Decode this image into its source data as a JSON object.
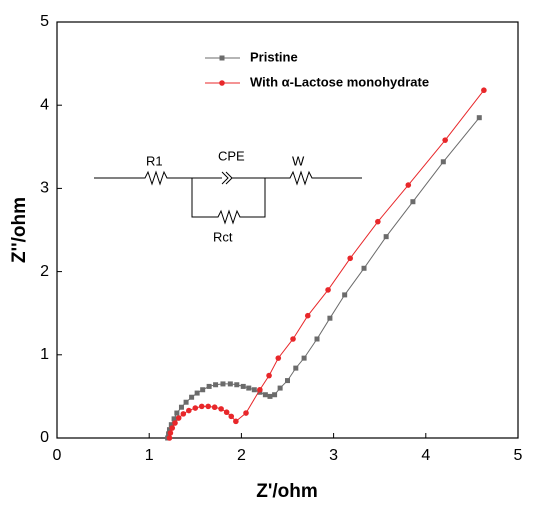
{
  "chart_data": {
    "type": "scatter",
    "xlabel": "Z'/ohm",
    "ylabel": "Z''/ohm",
    "xlim": [
      0,
      5
    ],
    "ylim": [
      0,
      5
    ],
    "xticks": [
      0,
      1,
      2,
      3,
      4,
      5
    ],
    "yticks": [
      0,
      1,
      2,
      3,
      4,
      5
    ],
    "legend": "top",
    "annotations": [
      "R1",
      "CPE",
      "W",
      "Rct"
    ],
    "series": [
      {
        "name": "Pristine",
        "color": "#6b6b6b",
        "marker": "square",
        "x": [
          1.2,
          1.21,
          1.22,
          1.24,
          1.27,
          1.3,
          1.35,
          1.4,
          1.46,
          1.52,
          1.58,
          1.65,
          1.72,
          1.8,
          1.88,
          1.95,
          2.02,
          2.08,
          2.14,
          2.2,
          2.26,
          2.31,
          2.36,
          2.42,
          2.5,
          2.59,
          2.68,
          2.82,
          2.96,
          3.12,
          3.33,
          3.57,
          3.86,
          4.19,
          4.58
        ],
        "values": [
          0.0,
          0.05,
          0.1,
          0.16,
          0.23,
          0.3,
          0.37,
          0.43,
          0.49,
          0.54,
          0.58,
          0.62,
          0.64,
          0.65,
          0.65,
          0.64,
          0.62,
          0.6,
          0.58,
          0.55,
          0.52,
          0.5,
          0.52,
          0.6,
          0.69,
          0.84,
          0.96,
          1.19,
          1.44,
          1.72,
          2.04,
          2.42,
          2.84,
          3.32,
          3.85
        ]
      },
      {
        "name": "With α-Lactose monohydrate",
        "color": "#e8272a",
        "marker": "circle",
        "x": [
          1.22,
          1.23,
          1.25,
          1.28,
          1.32,
          1.37,
          1.43,
          1.5,
          1.57,
          1.64,
          1.71,
          1.78,
          1.84,
          1.89,
          1.94,
          2.05,
          2.2,
          2.3,
          2.4,
          2.56,
          2.72,
          2.94,
          3.18,
          3.48,
          3.81,
          4.21,
          4.63
        ],
        "values": [
          0.0,
          0.06,
          0.12,
          0.18,
          0.24,
          0.29,
          0.33,
          0.36,
          0.38,
          0.38,
          0.37,
          0.35,
          0.31,
          0.26,
          0.2,
          0.3,
          0.58,
          0.75,
          0.96,
          1.19,
          1.47,
          1.78,
          2.16,
          2.6,
          3.04,
          3.58,
          4.18
        ]
      }
    ]
  }
}
